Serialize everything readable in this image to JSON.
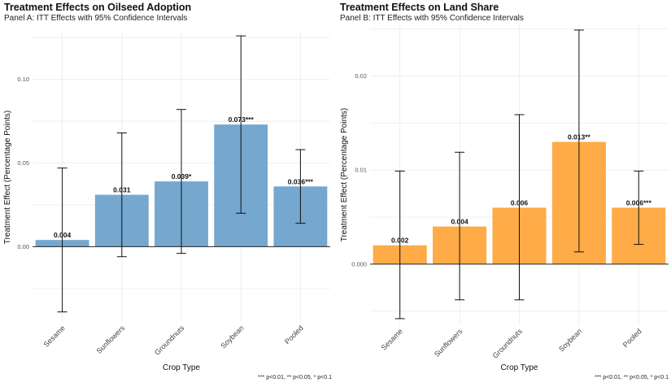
{
  "chart_data": [
    {
      "type": "bar",
      "title": "Treatment Effects on Oilseed Adoption",
      "subtitle": "Panel A: ITT Effects with 95% Confidence Intervals",
      "xlabel": "Crop Type",
      "ylabel": "Treatment Effect (Percentage Points)",
      "categories": [
        "Sesame",
        "Sunflowers",
        "Groundnuts",
        "Soybean",
        "Pooled"
      ],
      "values": [
        0.004,
        0.031,
        0.039,
        0.073,
        0.036
      ],
      "ci_low": [
        -0.039,
        -0.006,
        -0.004,
        0.02,
        0.014
      ],
      "ci_high": [
        0.047,
        0.068,
        0.082,
        0.126,
        0.058
      ],
      "labels": [
        "0.004",
        "0.031",
        "0.039*",
        "0.073***",
        "0.036***"
      ],
      "yticks": [
        0.0,
        0.05,
        0.1
      ],
      "ytick_labels": [
        "0.00",
        "0.05",
        "0.10"
      ],
      "ylim": [
        -0.045,
        0.128
      ],
      "color": "#75a7cf",
      "grid": true,
      "note": "*** p<0.01, ** p<0.05, * p<0.1"
    },
    {
      "type": "bar",
      "title": "Treatment Effects on Land Share",
      "subtitle": "Panel B: ITT Effects with 95% Confidence Intervals",
      "xlabel": "Crop Type",
      "ylabel": "Treatment Effect (Percentage Points)",
      "categories": [
        "Sesame",
        "Sunflowers",
        "Groundnuts",
        "Soybean",
        "Pooled"
      ],
      "values": [
        0.002,
        0.004,
        0.006,
        0.013,
        0.006
      ],
      "ci_low": [
        -0.0058,
        -0.0038,
        -0.0038,
        0.0013,
        0.0021
      ],
      "ci_high": [
        0.0099,
        0.0119,
        0.0159,
        0.0249,
        0.0099
      ],
      "labels": [
        "0.002",
        "0.004",
        "0.006",
        "0.013**",
        "0.006***"
      ],
      "yticks": [
        0.0,
        0.01,
        0.02
      ],
      "ytick_labels": [
        "0.000",
        "0.01",
        "0.02"
      ],
      "ylim": [
        -0.0065,
        0.0255
      ],
      "color": "#ffab47",
      "grid": true,
      "note": "*** p<0.01, ** p<0.05, * p<0.1"
    }
  ]
}
